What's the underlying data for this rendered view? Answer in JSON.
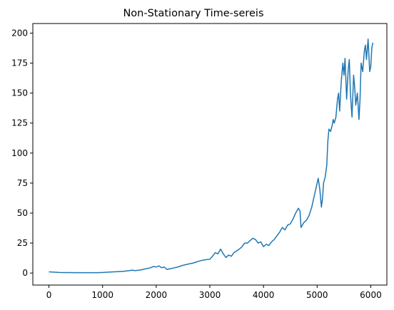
{
  "chart_data": {
    "type": "line",
    "title": "Non-Stationary Time-sereis",
    "xlabel": "",
    "ylabel": "",
    "xlim": [
      -300,
      6300
    ],
    "ylim": [
      -10,
      208
    ],
    "grid": false,
    "legend": "none",
    "xticks": [
      0,
      1000,
      2000,
      3000,
      4000,
      5000,
      6000
    ],
    "yticks": [
      0,
      25,
      50,
      75,
      100,
      125,
      150,
      175,
      200
    ],
    "series": [
      {
        "color": "#1f77b4",
        "x": [
          0,
          100,
          200,
          300,
          400,
          500,
          600,
          700,
          800,
          900,
          1000,
          1100,
          1200,
          1300,
          1400,
          1500,
          1550,
          1600,
          1700,
          1800,
          1850,
          1900,
          1950,
          2000,
          2050,
          2100,
          2150,
          2200,
          2250,
          2300,
          2400,
          2500,
          2600,
          2700,
          2800,
          2900,
          3000,
          3050,
          3100,
          3150,
          3200,
          3250,
          3300,
          3350,
          3400,
          3450,
          3500,
          3550,
          3600,
          3650,
          3700,
          3750,
          3800,
          3850,
          3900,
          3950,
          4000,
          4050,
          4100,
          4150,
          4200,
          4250,
          4300,
          4350,
          4400,
          4450,
          4500,
          4550,
          4600,
          4650,
          4680,
          4700,
          4750,
          4800,
          4850,
          4900,
          4950,
          5000,
          5020,
          5050,
          5080,
          5100,
          5120,
          5150,
          5180,
          5200,
          5220,
          5250,
          5280,
          5300,
          5320,
          5350,
          5380,
          5400,
          5420,
          5450,
          5480,
          5500,
          5520,
          5550,
          5580,
          5600,
          5620,
          5650,
          5680,
          5700,
          5720,
          5750,
          5780,
          5800,
          5820,
          5850,
          5880,
          5900,
          5920,
          5950,
          5980,
          6000,
          6020,
          6040
        ],
        "y": [
          1.0,
          0.8,
          0.5,
          0.4,
          0.4,
          0.3,
          0.3,
          0.3,
          0.3,
          0.3,
          0.5,
          0.8,
          1.0,
          1.2,
          1.5,
          2.0,
          2.4,
          2.0,
          2.5,
          3.5,
          4.0,
          4.5,
          5.5,
          5.0,
          6.0,
          4.5,
          5.0,
          3.0,
          3.5,
          4.0,
          5.0,
          6.5,
          7.5,
          8.5,
          10.0,
          11.0,
          11.5,
          14.0,
          17.0,
          16.0,
          20.0,
          16.0,
          13.0,
          15.0,
          14.0,
          17.0,
          18.5,
          20.0,
          22.0,
          25.0,
          25.0,
          27.0,
          29.0,
          28.0,
          25.0,
          26.0,
          22.0,
          24.0,
          23.0,
          26.0,
          28.0,
          31.0,
          34.0,
          38.0,
          36.0,
          40.0,
          41.0,
          45.0,
          50.0,
          54.0,
          52.0,
          38.0,
          42.0,
          44.0,
          48.0,
          55.0,
          65.0,
          75.0,
          79.0,
          70.0,
          55.0,
          62.0,
          75.0,
          80.0,
          90.0,
          110.0,
          120.0,
          118.0,
          123.0,
          128.0,
          125.0,
          130.0,
          145.0,
          150.0,
          135.0,
          160.0,
          175.0,
          165.0,
          179.0,
          145.0,
          170.0,
          178.0,
          150.0,
          130.0,
          165.0,
          155.0,
          140.0,
          150.0,
          128.0,
          145.0,
          175.0,
          168.0,
          185.0,
          190.0,
          178.0,
          195.0,
          168.0,
          172.0,
          188.0,
          192.0
        ]
      }
    ]
  }
}
